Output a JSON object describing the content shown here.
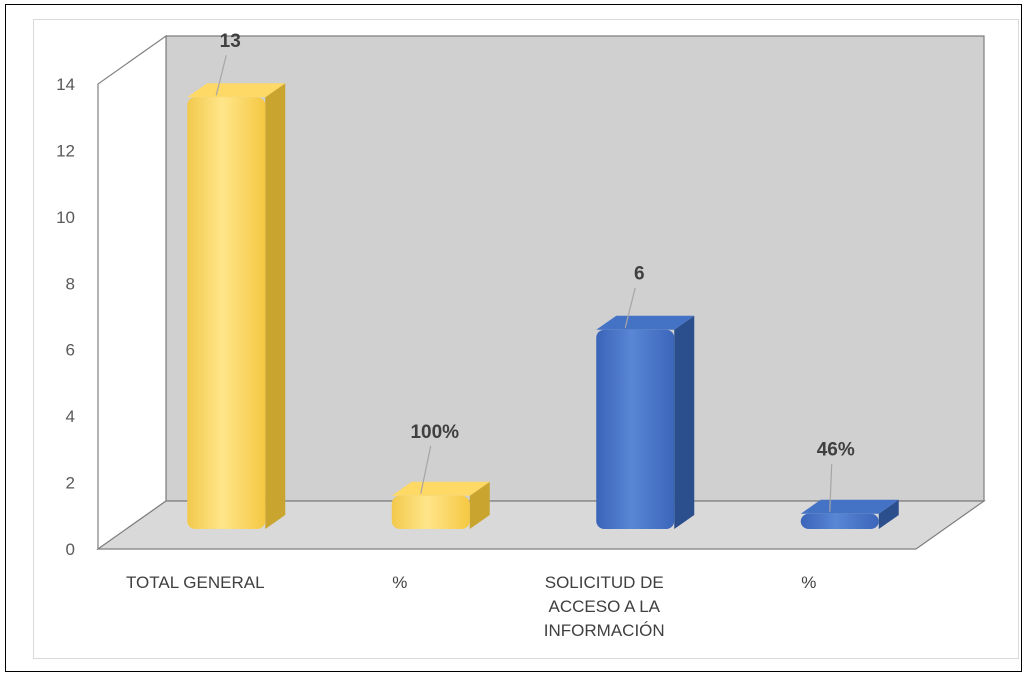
{
  "chart_data": {
    "type": "bar",
    "style": "3d-column",
    "categories": [
      "TOTAL GENERAL",
      "%",
      "SOLICITUD DE ACCESO A LA INFORMACIÓN",
      "%"
    ],
    "category_lines": [
      [
        "TOTAL GENERAL"
      ],
      [
        "%"
      ],
      [
        "SOLICITUD DE",
        "ACCESO A LA",
        "INFORMACIÓN"
      ],
      [
        "%"
      ]
    ],
    "values": [
      13,
      1,
      6,
      0.46
    ],
    "data_labels": [
      "13",
      "100%",
      "6",
      "46%"
    ],
    "bar_colors": [
      "#FFD966",
      "#FFD966",
      "#4472C4",
      "#4472C4"
    ],
    "bar_side_colors": [
      "#C9A52F",
      "#C9A52F",
      "#2B4E8C",
      "#2B4E8C"
    ],
    "ylim": [
      0,
      14
    ],
    "yticks": [
      0,
      2,
      4,
      6,
      8,
      10,
      12,
      14
    ],
    "grid": false,
    "back_wall_color": "#D0D0D0",
    "floor_color": "#D9D9D9",
    "title": "",
    "xlabel": "",
    "ylabel": ""
  }
}
